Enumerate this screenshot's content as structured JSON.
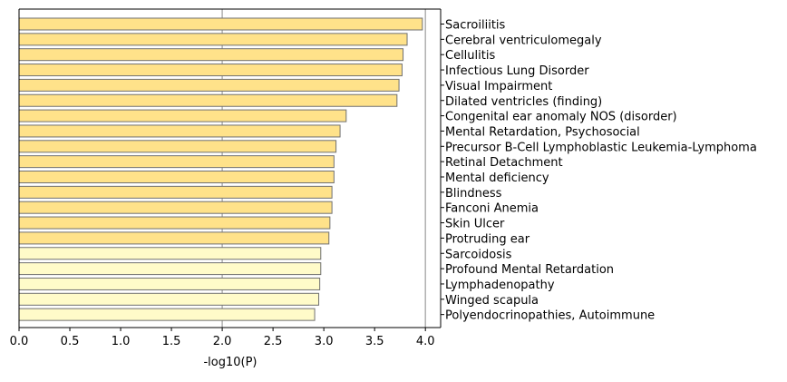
{
  "chart_data": {
    "type": "bar",
    "orientation": "horizontal",
    "categories": [
      "Sacroiliitis",
      "Cerebral ventriculomegaly",
      "Cellulitis",
      "Infectious Lung Disorder",
      "Visual Impairment",
      "Dilated ventricles (finding)",
      "Congenital ear anomaly NOS (disorder)",
      "Mental Retardation, Psychosocial",
      "Precursor B-Cell Lymphoblastic Leukemia-Lymphoma",
      "Retinal Detachment",
      "Mental deficiency",
      "Blindness",
      "Fanconi Anemia",
      "Skin Ulcer",
      "Protruding ear",
      "Sarcoidosis",
      "Profound Mental Retardation",
      "Lymphadenopathy",
      "Winged scapula",
      "Polyendocrinopathies, Autoimmune"
    ],
    "values": [
      3.97,
      3.82,
      3.78,
      3.77,
      3.74,
      3.72,
      3.22,
      3.16,
      3.12,
      3.1,
      3.1,
      3.08,
      3.08,
      3.06,
      3.05,
      2.97,
      2.97,
      2.96,
      2.95,
      2.91
    ],
    "xlabel": "-log10(P)",
    "ylabel": "",
    "xlim": [
      0,
      4.15
    ],
    "xticks": [
      "0.0",
      "0.5",
      "1.0",
      "1.5",
      "2.0",
      "2.5",
      "3.0",
      "3.5",
      "4.0"
    ],
    "reference_lines": [
      2.0,
      4.0
    ],
    "category_labels_side": "right",
    "colors": {
      "significant": "#ffe28a",
      "other": "#fffbc9",
      "edge": "#707070",
      "reference_line": "#b0b0b0"
    },
    "highlight_threshold": 3.0
  }
}
